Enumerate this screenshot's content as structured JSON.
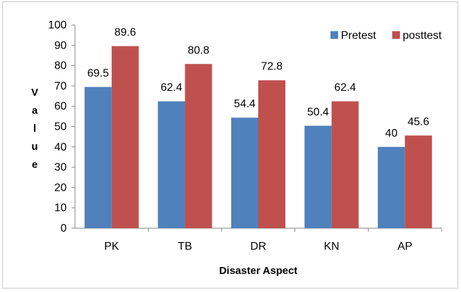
{
  "chart_data": {
    "type": "bar",
    "title": "",
    "xlabel": "Disaster Aspect",
    "ylabel": "Value",
    "categories": [
      "PK",
      "TB",
      "DR",
      "KN",
      "AP"
    ],
    "series": [
      {
        "name": "Pretest",
        "values": [
          69.5,
          62.4,
          54.4,
          50.4,
          40
        ],
        "labels": [
          "69.5",
          "62.4",
          "54.4",
          "50.4",
          "40"
        ],
        "color": "#4F81BD"
      },
      {
        "name": "posttest",
        "values": [
          89.6,
          80.8,
          72.8,
          62.4,
          45.6
        ],
        "labels": [
          "89.6",
          "80.8",
          "72.8",
          "62.4",
          "45.6"
        ],
        "color": "#C0504D"
      }
    ],
    "ylim": [
      0,
      100
    ],
    "yticks": [
      0,
      10,
      20,
      30,
      40,
      50,
      60,
      70,
      80,
      90,
      100
    ],
    "grid": false,
    "legend": "top-right"
  }
}
